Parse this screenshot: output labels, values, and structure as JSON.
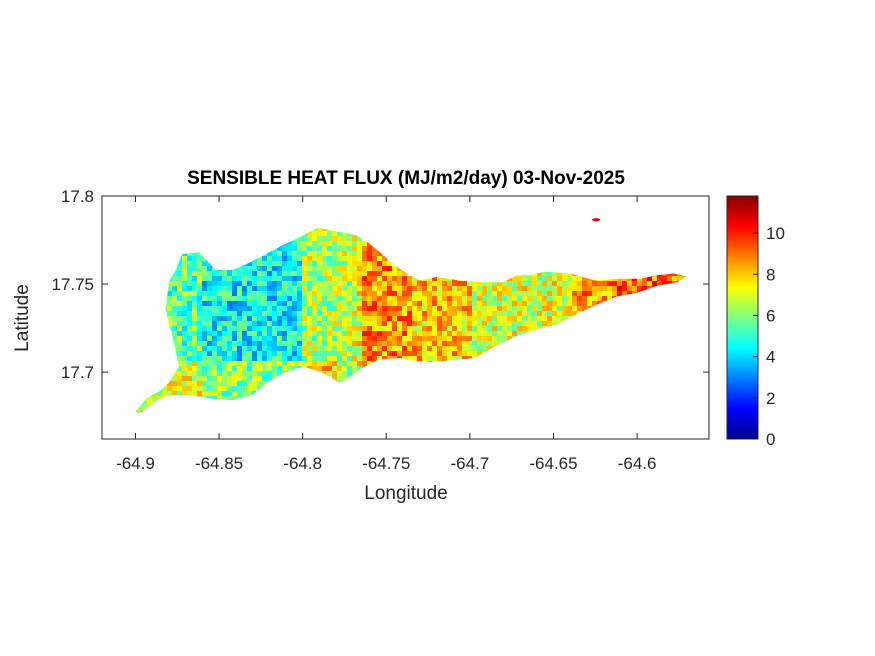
{
  "chart_data": {
    "type": "heatmap",
    "title": "SENSIBLE HEAT FLUX (MJ/m2/day) 03-Nov-2025",
    "xlabel": "Longitude",
    "ylabel": "Latitude",
    "xlim": [
      -64.92,
      -64.557
    ],
    "ylim": [
      17.662,
      17.8
    ],
    "x_ticks": [
      -64.9,
      -64.85,
      -64.8,
      -64.75,
      -64.7,
      -64.65,
      -64.6
    ],
    "x_tick_labels": [
      "-64.9",
      "-64.85",
      "-64.8",
      "-64.75",
      "-64.7",
      "-64.65",
      "-64.6"
    ],
    "y_ticks": [
      17.7,
      17.75,
      17.8
    ],
    "y_tick_labels": [
      "17.7",
      "17.75",
      "17.8"
    ],
    "colorbar": {
      "colormap": "jet",
      "range": [
        0,
        11.8
      ],
      "ticks": [
        0,
        2,
        4,
        6,
        8,
        10
      ],
      "tick_labels": [
        "0",
        "2",
        "4",
        "6",
        "8",
        "10"
      ]
    },
    "grid": false,
    "regions": [
      {
        "lon_range": [
          -64.9,
          -64.86
        ],
        "typical_value": 5.5
      },
      {
        "lon_range": [
          -64.86,
          -64.8
        ],
        "typical_value": 4.5
      },
      {
        "lon_range": [
          -64.8,
          -64.765
        ],
        "typical_value": 6.5
      },
      {
        "lon_range": [
          -64.765,
          -64.7
        ],
        "typical_value": 8.0
      },
      {
        "lon_range": [
          -64.7,
          -64.64
        ],
        "typical_value": 7.0
      },
      {
        "lon_range": [
          -64.64,
          -64.565
        ],
        "typical_value": 8.5
      }
    ]
  }
}
